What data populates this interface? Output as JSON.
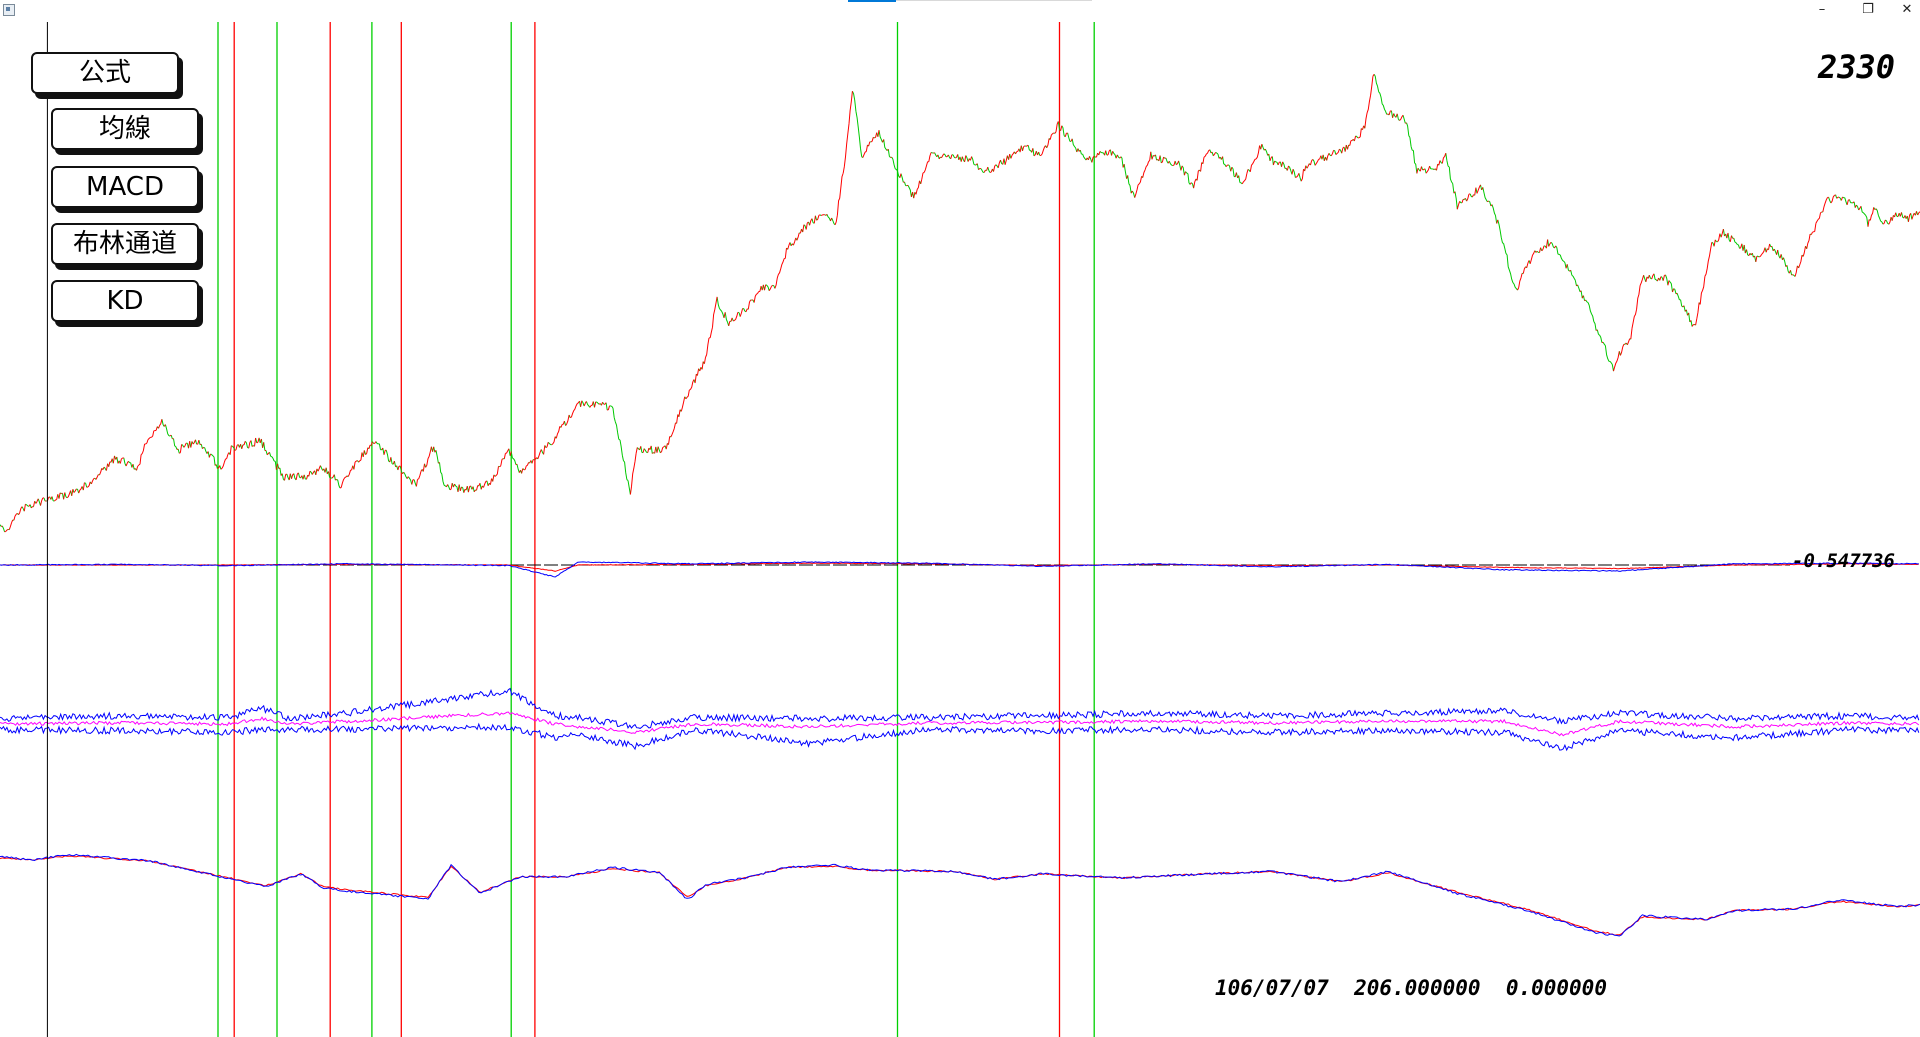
{
  "window": {
    "minimize_glyph": "–",
    "restore_glyph": "❐",
    "close_glyph": "✕"
  },
  "menu": {
    "formula_label": "公式",
    "moving_average_label": "均線",
    "macd_label": "MACD",
    "bollinger_label": "布林通道",
    "kd_label": "KD"
  },
  "ticker_symbol": "2330",
  "status": {
    "date": "106/07/07",
    "value_a": "206.000000",
    "value_b": "0.000000"
  },
  "colors": {
    "rise": "#ff0000",
    "fall": "#00c800",
    "buy_signal": "#00d000",
    "sell_signal": "#ff0000",
    "cursor": "#000000",
    "macd_line": "#0000ff",
    "signal_line": "#ff0000",
    "band_outer": "#0000ff",
    "band_middle": "#ff00ff",
    "k_line": "#0000ff",
    "d_line": "#ff0000"
  },
  "chart_data": [
    {
      "type": "line",
      "name": "price",
      "index_range": [
        0,
        1920
      ],
      "ylim": [
        0,
        1
      ],
      "points": [
        [
          0,
          0.04
        ],
        [
          10,
          0.02
        ],
        [
          40,
          0.07
        ],
        [
          80,
          0.09
        ],
        [
          120,
          0.1
        ],
        [
          160,
          0.13
        ],
        [
          200,
          0.18
        ],
        [
          240,
          0.16
        ],
        [
          250,
          0.21
        ],
        [
          280,
          0.26
        ],
        [
          310,
          0.2
        ],
        [
          340,
          0.22
        ],
        [
          380,
          0.16
        ],
        [
          400,
          0.2
        ],
        [
          450,
          0.22
        ],
        [
          490,
          0.14
        ],
        [
          530,
          0.14
        ],
        [
          560,
          0.16
        ],
        [
          590,
          0.12
        ],
        [
          620,
          0.18
        ],
        [
          650,
          0.22
        ],
        [
          680,
          0.17
        ],
        [
          720,
          0.12
        ],
        [
          750,
          0.21
        ],
        [
          770,
          0.12
        ],
        [
          810,
          0.11
        ],
        [
          850,
          0.13
        ],
        [
          880,
          0.2
        ],
        [
          900,
          0.15
        ],
        [
          950,
          0.21
        ],
        [
          1000,
          0.3
        ],
        [
          1040,
          0.3
        ],
        [
          1060,
          0.29
        ],
        [
          1090,
          0.1
        ],
        [
          1100,
          0.2
        ],
        [
          1120,
          0.2
        ],
        [
          1150,
          0.2
        ],
        [
          1180,
          0.3
        ],
        [
          1220,
          0.4
        ],
        [
          1240,
          0.53
        ],
        [
          1260,
          0.48
        ],
        [
          1290,
          0.51
        ],
        [
          1320,
          0.56
        ],
        [
          1340,
          0.56
        ],
        [
          1360,
          0.64
        ],
        [
          1390,
          0.69
        ],
        [
          1420,
          0.72
        ],
        [
          1445,
          0.7
        ],
        [
          1460,
          0.83
        ],
        [
          1475,
          1.0
        ],
        [
          1490,
          0.85
        ],
        [
          1520,
          0.9
        ],
        [
          1550,
          0.82
        ],
        [
          1580,
          0.76
        ],
        [
          1610,
          0.85
        ],
        [
          1640,
          0.85
        ],
        [
          1680,
          0.84
        ],
        [
          1700,
          0.81
        ],
        [
          1740,
          0.84
        ],
        [
          1770,
          0.87
        ],
        [
          1800,
          0.85
        ],
        [
          1830,
          0.92
        ],
        [
          1860,
          0.87
        ],
        [
          1880,
          0.84
        ],
        [
          1900,
          0.85
        ],
        [
          1920,
          0.86
        ],
        [
          1940,
          0.84
        ],
        [
          1960,
          0.76
        ],
        [
          1990,
          0.85
        ],
        [
          2010,
          0.84
        ],
        [
          2040,
          0.83
        ],
        [
          2065,
          0.78
        ],
        [
          2085,
          0.86
        ],
        [
          2115,
          0.84
        ],
        [
          2150,
          0.79
        ],
        [
          2180,
          0.87
        ],
        [
          2200,
          0.84
        ],
        [
          2230,
          0.82
        ],
        [
          2250,
          0.8
        ],
        [
          2260,
          0.83
        ],
        [
          2300,
          0.85
        ],
        [
          2330,
          0.87
        ],
        [
          2360,
          0.91
        ],
        [
          2375,
          1.03
        ],
        [
          2395,
          0.95
        ],
        [
          2430,
          0.93
        ],
        [
          2450,
          0.82
        ],
        [
          2480,
          0.82
        ],
        [
          2500,
          0.85
        ],
        [
          2520,
          0.74
        ],
        [
          2560,
          0.78
        ],
        [
          2580,
          0.74
        ],
        [
          2595,
          0.68
        ],
        [
          2620,
          0.55
        ],
        [
          2650,
          0.63
        ],
        [
          2680,
          0.66
        ],
        [
          2700,
          0.63
        ],
        [
          2720,
          0.58
        ],
        [
          2745,
          0.52
        ],
        [
          2770,
          0.44
        ],
        [
          2790,
          0.38
        ],
        [
          2800,
          0.41
        ],
        [
          2820,
          0.45
        ],
        [
          2840,
          0.58
        ],
        [
          2880,
          0.58
        ],
        [
          2910,
          0.52
        ],
        [
          2930,
          0.47
        ],
        [
          2960,
          0.65
        ],
        [
          2980,
          0.68
        ],
        [
          3010,
          0.65
        ],
        [
          3040,
          0.62
        ],
        [
          3060,
          0.65
        ],
        [
          3080,
          0.63
        ],
        [
          3100,
          0.58
        ],
        [
          3130,
          0.67
        ],
        [
          3160,
          0.75
        ],
        [
          3180,
          0.76
        ],
        [
          3220,
          0.73
        ],
        [
          3230,
          0.7
        ],
        [
          3240,
          0.73
        ],
        [
          3260,
          0.7
        ],
        [
          3280,
          0.72
        ],
        [
          3300,
          0.71
        ],
        [
          3320,
          0.73
        ]
      ],
      "x_scale_note": ""
    },
    {
      "type": "line",
      "name": "macd",
      "ylim": [
        -1,
        1
      ],
      "reference_value_label": "-0.547736",
      "macd_points": [
        [
          0,
          0.0
        ],
        [
          200,
          0.01
        ],
        [
          400,
          -0.01
        ],
        [
          600,
          0.02
        ],
        [
          880,
          -0.01
        ],
        [
          960,
          -0.2
        ],
        [
          1000,
          0.05
        ],
        [
          1200,
          0.02
        ],
        [
          1400,
          0.05
        ],
        [
          1600,
          0.03
        ],
        [
          1800,
          -0.02
        ],
        [
          2000,
          0.02
        ],
        [
          2200,
          -0.03
        ],
        [
          2400,
          0.01
        ],
        [
          2600,
          -0.08
        ],
        [
          2800,
          -0.1
        ],
        [
          3000,
          0.02
        ],
        [
          3200,
          0.03
        ],
        [
          3320,
          0.02
        ]
      ],
      "signal_points": [
        [
          0,
          0.0
        ],
        [
          200,
          0.0
        ],
        [
          400,
          0.0
        ],
        [
          600,
          0.01
        ],
        [
          880,
          0.0
        ],
        [
          960,
          -0.1
        ],
        [
          1000,
          0.0
        ],
        [
          1200,
          0.01
        ],
        [
          1400,
          0.03
        ],
        [
          1600,
          0.02
        ],
        [
          1800,
          -0.01
        ],
        [
          2000,
          0.01
        ],
        [
          2200,
          -0.01
        ],
        [
          2400,
          0.0
        ],
        [
          2600,
          -0.04
        ],
        [
          2800,
          -0.06
        ],
        [
          3000,
          0.0
        ],
        [
          3200,
          0.02
        ],
        [
          3320,
          0.01
        ]
      ]
    },
    {
      "type": "line",
      "name": "bollinger",
      "ylim": [
        -1,
        1
      ],
      "upper_points": [
        [
          0,
          0.1
        ],
        [
          200,
          0.15
        ],
        [
          400,
          0.12
        ],
        [
          450,
          0.3
        ],
        [
          500,
          0.1
        ],
        [
          600,
          0.2
        ],
        [
          880,
          0.6
        ],
        [
          960,
          0.15
        ],
        [
          1000,
          0.12
        ],
        [
          1100,
          -0.05
        ],
        [
          1200,
          0.12
        ],
        [
          1400,
          0.1
        ],
        [
          1600,
          0.12
        ],
        [
          1800,
          0.15
        ],
        [
          2000,
          0.2
        ],
        [
          2200,
          0.15
        ],
        [
          2400,
          0.2
        ],
        [
          2600,
          0.25
        ],
        [
          2700,
          0.05
        ],
        [
          2800,
          0.2
        ],
        [
          3000,
          0.1
        ],
        [
          3200,
          0.15
        ],
        [
          3320,
          0.1
        ]
      ],
      "middle_points": [
        [
          0,
          0.0
        ],
        [
          200,
          0.02
        ],
        [
          400,
          0.0
        ],
        [
          450,
          0.1
        ],
        [
          500,
          0.0
        ],
        [
          600,
          0.05
        ],
        [
          880,
          0.2
        ],
        [
          960,
          0.0
        ],
        [
          1000,
          -0.05
        ],
        [
          1100,
          -0.15
        ],
        [
          1200,
          0.0
        ],
        [
          1400,
          -0.05
        ],
        [
          1600,
          0.02
        ],
        [
          1800,
          0.03
        ],
        [
          2000,
          0.05
        ],
        [
          2200,
          0.02
        ],
        [
          2400,
          0.05
        ],
        [
          2600,
          0.05
        ],
        [
          2700,
          -0.2
        ],
        [
          2800,
          0.05
        ],
        [
          3000,
          -0.05
        ],
        [
          3200,
          0.02
        ],
        [
          3320,
          0.0
        ]
      ],
      "lower_points": [
        [
          0,
          -0.1
        ],
        [
          200,
          -0.12
        ],
        [
          400,
          -0.15
        ],
        [
          450,
          -0.1
        ],
        [
          500,
          -0.1
        ],
        [
          600,
          -0.1
        ],
        [
          880,
          -0.05
        ],
        [
          960,
          -0.25
        ],
        [
          1000,
          -0.2
        ],
        [
          1100,
          -0.4
        ],
        [
          1200,
          -0.1
        ],
        [
          1400,
          -0.35
        ],
        [
          1600,
          -0.1
        ],
        [
          1800,
          -0.12
        ],
        [
          2000,
          -0.1
        ],
        [
          2200,
          -0.15
        ],
        [
          2400,
          -0.12
        ],
        [
          2600,
          -0.15
        ],
        [
          2700,
          -0.45
        ],
        [
          2800,
          -0.12
        ],
        [
          3000,
          -0.25
        ],
        [
          3200,
          -0.1
        ],
        [
          3320,
          -0.12
        ]
      ]
    },
    {
      "type": "line",
      "name": "kd",
      "ylim": [
        0,
        100
      ],
      "k_points": [
        [
          0,
          83
        ],
        [
          60,
          81
        ],
        [
          120,
          85
        ],
        [
          260,
          80
        ],
        [
          330,
          73
        ],
        [
          460,
          60
        ],
        [
          520,
          70
        ],
        [
          560,
          59
        ],
        [
          620,
          56
        ],
        [
          740,
          51
        ],
        [
          780,
          77
        ],
        [
          800,
          68
        ],
        [
          830,
          55
        ],
        [
          900,
          68
        ],
        [
          980,
          68
        ],
        [
          1060,
          75
        ],
        [
          1140,
          71
        ],
        [
          1190,
          50
        ],
        [
          1220,
          62
        ],
        [
          1290,
          67
        ],
        [
          1360,
          75
        ],
        [
          1440,
          77
        ],
        [
          1500,
          73
        ],
        [
          1650,
          72
        ],
        [
          1720,
          66
        ],
        [
          1800,
          70
        ],
        [
          1940,
          67
        ],
        [
          2080,
          70
        ],
        [
          2200,
          72
        ],
        [
          2320,
          64
        ],
        [
          2400,
          72
        ],
        [
          2520,
          55
        ],
        [
          2640,
          42
        ],
        [
          2760,
          25
        ],
        [
          2800,
          22
        ],
        [
          2840,
          38
        ],
        [
          2950,
          35
        ],
        [
          3000,
          42
        ],
        [
          3100,
          43
        ],
        [
          3180,
          50
        ],
        [
          3280,
          45
        ],
        [
          3320,
          46
        ]
      ],
      "d_points": [
        [
          0,
          82
        ],
        [
          60,
          81
        ],
        [
          120,
          84
        ],
        [
          260,
          80
        ],
        [
          330,
          73
        ],
        [
          460,
          61
        ],
        [
          520,
          70
        ],
        [
          560,
          60
        ],
        [
          620,
          57
        ],
        [
          740,
          52
        ],
        [
          780,
          76
        ],
        [
          800,
          68
        ],
        [
          830,
          56
        ],
        [
          900,
          68
        ],
        [
          980,
          68
        ],
        [
          1060,
          74
        ],
        [
          1140,
          71
        ],
        [
          1190,
          52
        ],
        [
          1220,
          61
        ],
        [
          1290,
          67
        ],
        [
          1360,
          75
        ],
        [
          1440,
          76
        ],
        [
          1500,
          73
        ],
        [
          1650,
          72
        ],
        [
          1720,
          66
        ],
        [
          1800,
          70
        ],
        [
          1940,
          67
        ],
        [
          2080,
          70
        ],
        [
          2200,
          72
        ],
        [
          2320,
          64
        ],
        [
          2400,
          71
        ],
        [
          2520,
          56
        ],
        [
          2640,
          43
        ],
        [
          2760,
          26
        ],
        [
          2800,
          23
        ],
        [
          2840,
          37
        ],
        [
          2950,
          35
        ],
        [
          3000,
          42
        ],
        [
          3100,
          43
        ],
        [
          3180,
          49
        ],
        [
          3280,
          45
        ],
        [
          3320,
          46
        ]
      ]
    }
  ],
  "signal_markers": {
    "buy_indices": [
      377,
      479,
      643,
      884,
      1552,
      1892
    ],
    "sell_indices": [
      405,
      571,
      694,
      925,
      1832
    ],
    "cursor_index": 82
  }
}
